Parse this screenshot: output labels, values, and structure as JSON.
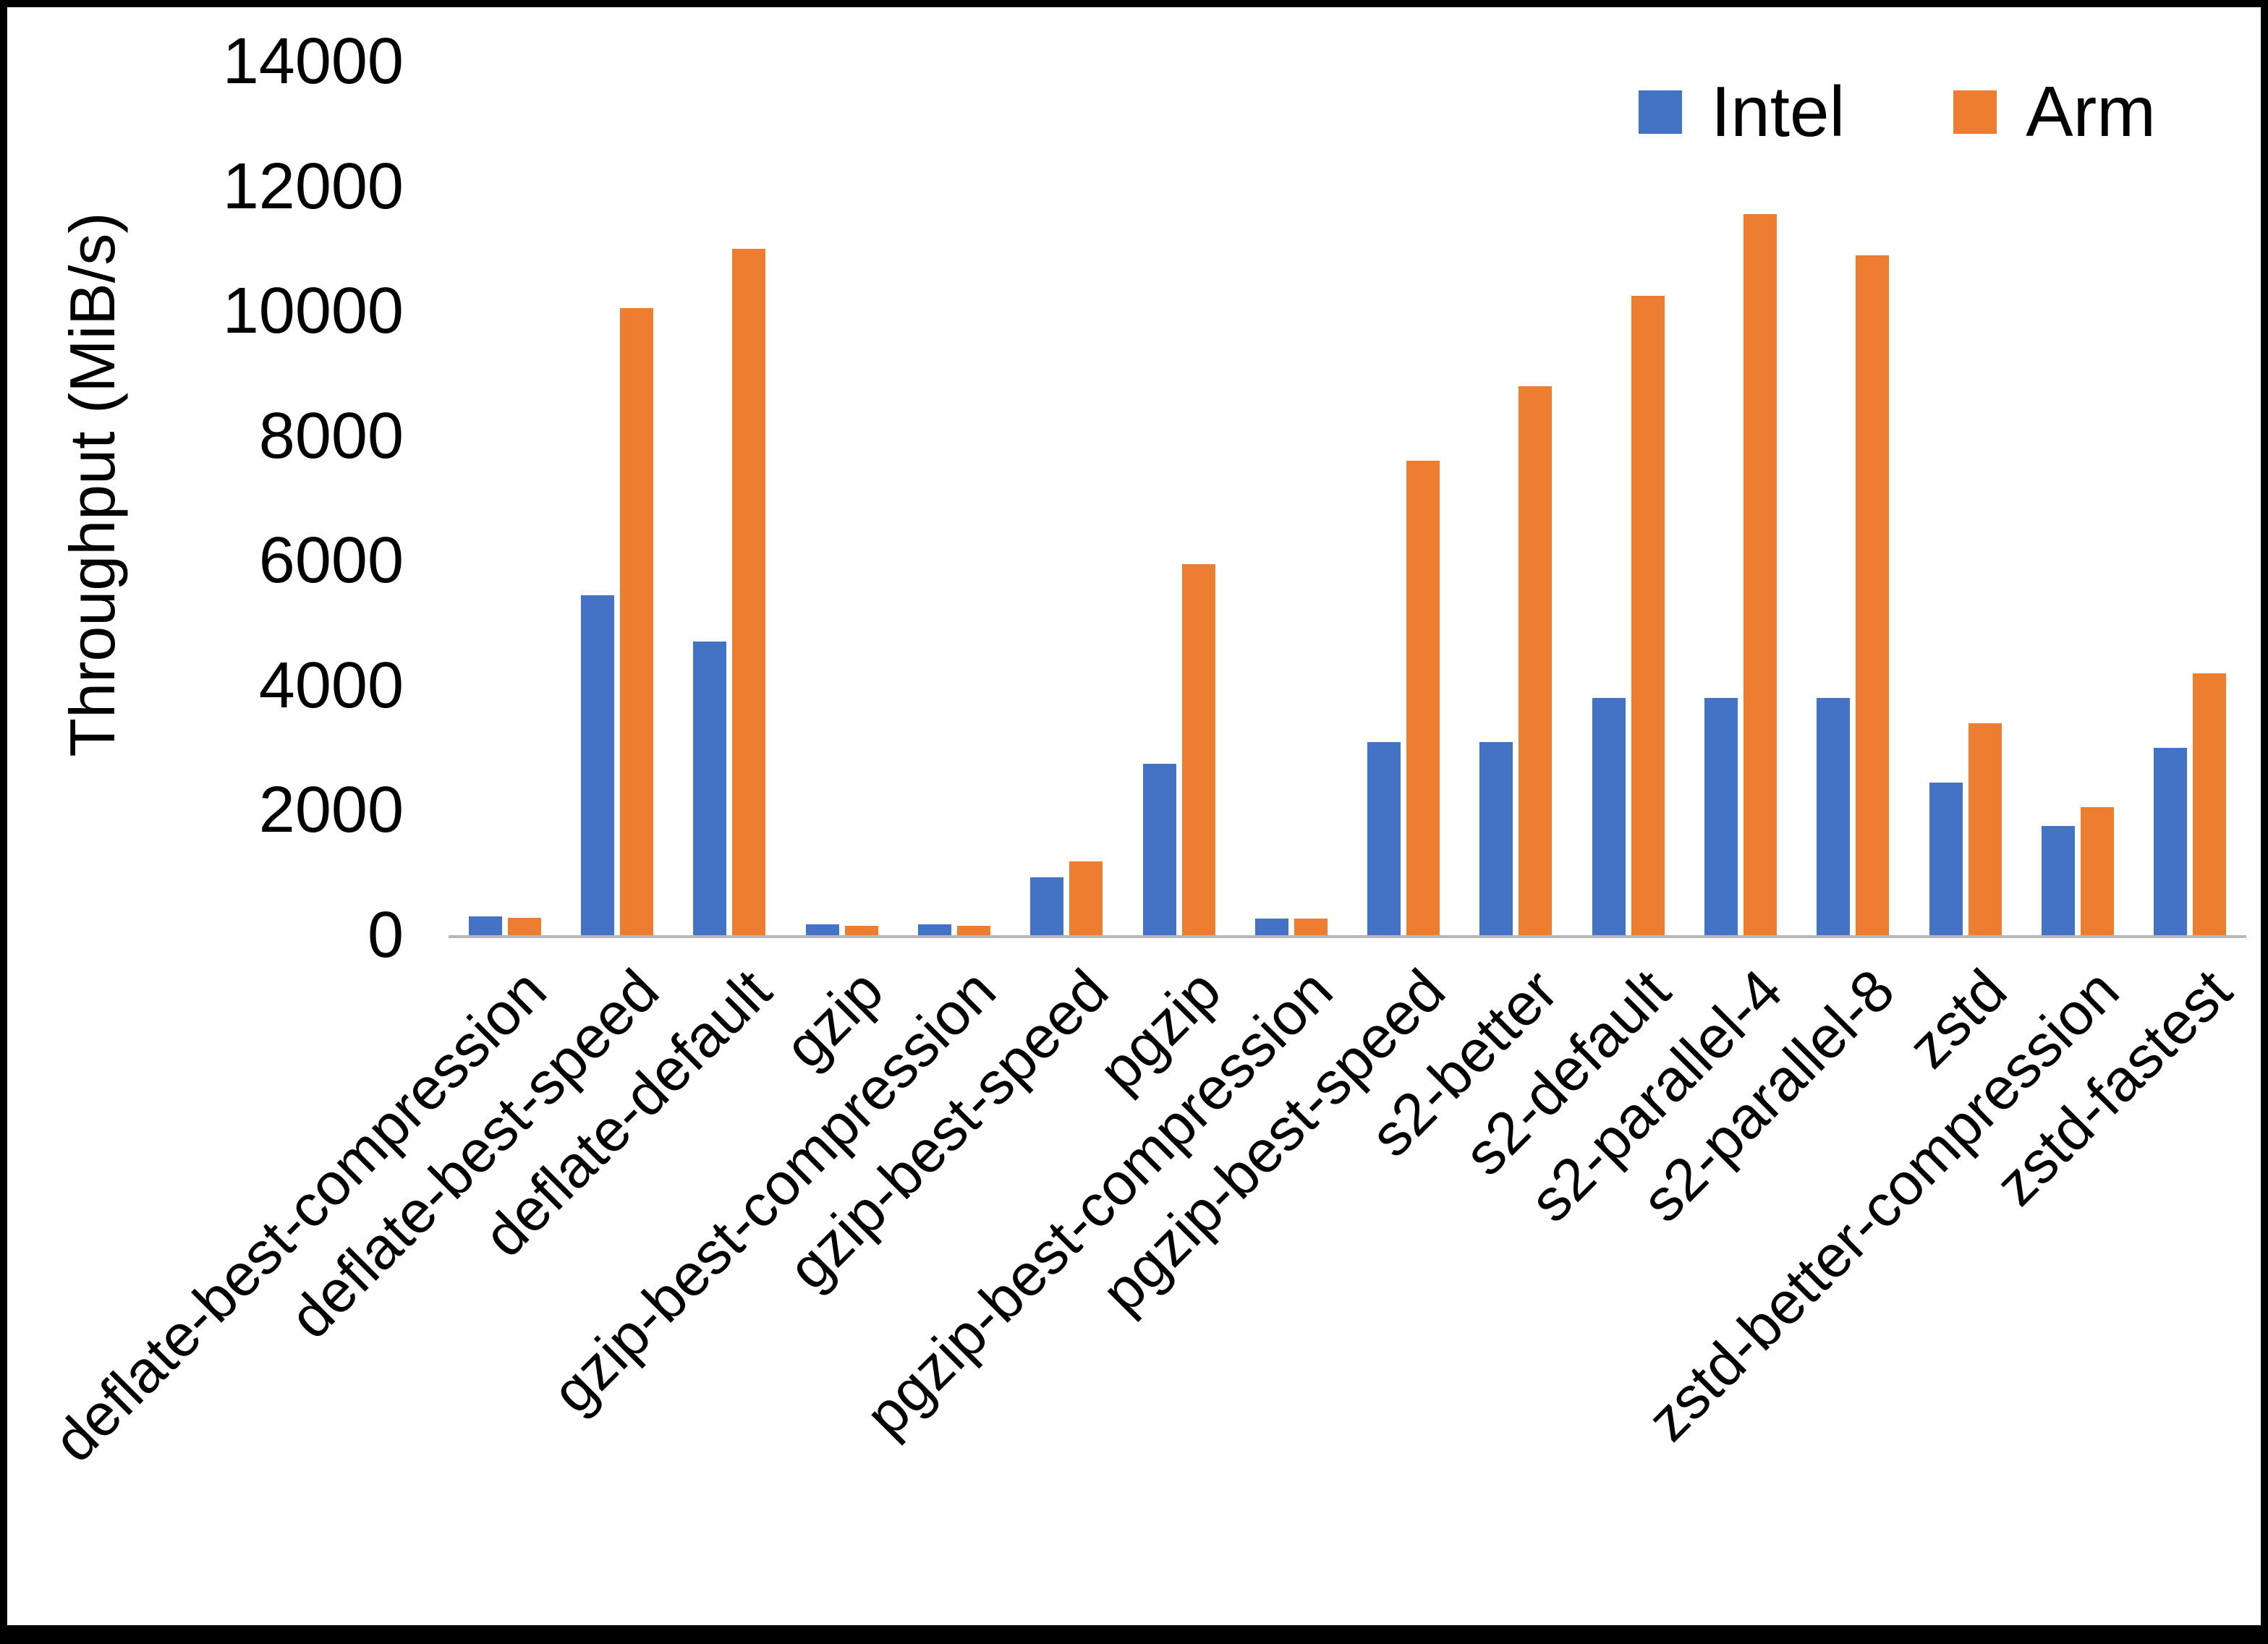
{
  "colors": {
    "intel": "#4472C4",
    "arm": "#ED7D31",
    "axis_line": "#b7b7b7",
    "text": "#000000",
    "frame_border": "#000000"
  },
  "legend": {
    "position": "top-right",
    "items": [
      {
        "label": "Intel",
        "color": "#4472C4"
      },
      {
        "label": "Arm",
        "color": "#ED7D31"
      }
    ]
  },
  "chart_data": {
    "type": "bar",
    "title": "",
    "xlabel": "",
    "ylabel": "Throughput (MiB/s)",
    "ylim": [
      0,
      14000
    ],
    "ytick_step": 2000,
    "yticks": [
      0,
      2000,
      4000,
      6000,
      8000,
      10000,
      12000,
      14000
    ],
    "grid": false,
    "legend_position": "top-right",
    "categories": [
      "deflate-best-compression",
      "deflate-best-speed",
      "deflate-default",
      "gzip",
      "gzip-best-compression",
      "gzip-best-speed",
      "pgzip",
      "pgzip-best-compression",
      "pgzip-best-speed",
      "s2-better",
      "s2-default",
      "s2-parallel-4",
      "s2-parallel-8",
      "zstd",
      "zstd-better-compression",
      "zstd-fastest"
    ],
    "series": [
      {
        "name": "Intel",
        "color": "#4472C4",
        "values": [
          300,
          5450,
          4700,
          170,
          170,
          930,
          2750,
          270,
          3100,
          3100,
          3800,
          3800,
          3800,
          2450,
          1750,
          3000
        ]
      },
      {
        "name": "Arm",
        "color": "#ED7D31",
        "values": [
          280,
          10050,
          11000,
          150,
          150,
          1180,
          5950,
          270,
          7600,
          8800,
          10250,
          11550,
          10900,
          3400,
          2050,
          4200
        ]
      }
    ]
  }
}
